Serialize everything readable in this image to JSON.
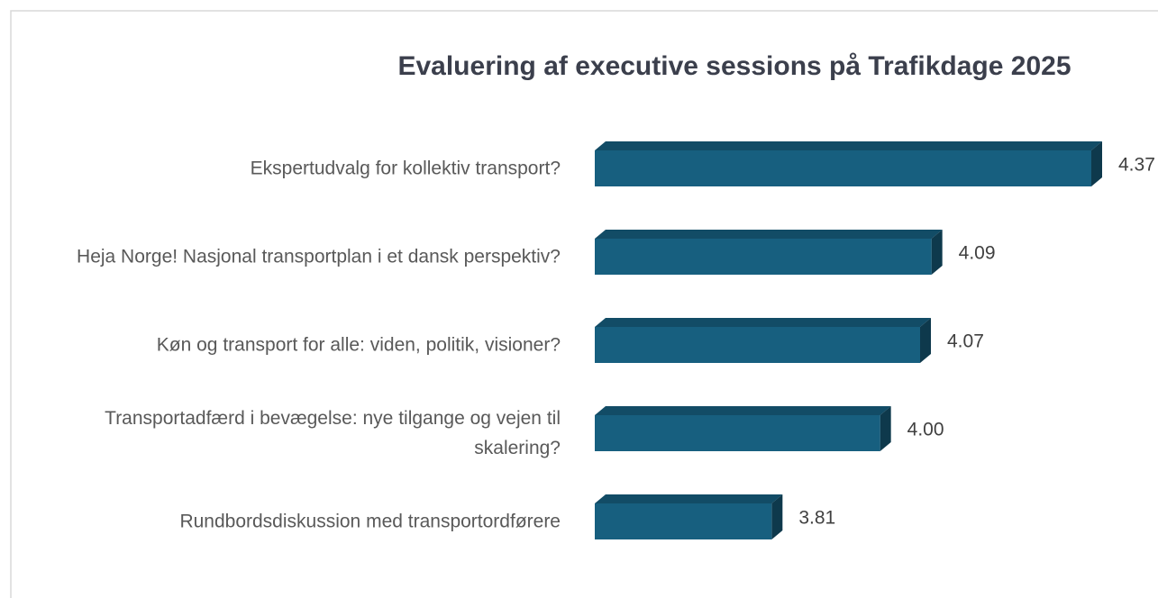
{
  "chart_data": {
    "type": "bar3d_horizontal",
    "title": "Evaluering af executive sessions på Trafikdage 2025",
    "categories": [
      "Ekspertudvalg for kollektiv transport?",
      "Heja Norge! Nasjonal transportplan i et dansk perspektiv?",
      "Køn og transport for alle: viden, politik, visioner?",
      "Transportadfærd i bevægelse: nye tilgange og vejen til skalering?",
      "Rundbordsdiskussion med transportordførere"
    ],
    "values": [
      4.37,
      4.09,
      4.07,
      4.0,
      3.81
    ],
    "value_labels": [
      "4.37",
      "4.09",
      "4.07",
      "4.00",
      "3.81"
    ],
    "color": "#175f7f",
    "xlim": [
      3.5,
      4.4
    ]
  }
}
